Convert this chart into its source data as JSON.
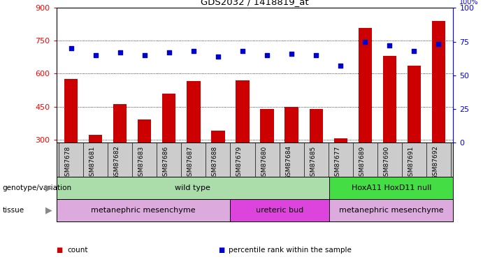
{
  "title": "GDS2032 / 1418819_at",
  "samples": [
    "GSM87678",
    "GSM87681",
    "GSM87682",
    "GSM87683",
    "GSM87686",
    "GSM87687",
    "GSM87688",
    "GSM87679",
    "GSM87680",
    "GSM87684",
    "GSM87685",
    "GSM87677",
    "GSM87689",
    "GSM87690",
    "GSM87691",
    "GSM87692"
  ],
  "counts": [
    575,
    320,
    460,
    390,
    510,
    565,
    340,
    570,
    440,
    450,
    440,
    305,
    810,
    680,
    635,
    840
  ],
  "percentiles": [
    70,
    65,
    67,
    65,
    67,
    68,
    64,
    68,
    65,
    66,
    65,
    57,
    75,
    72,
    68,
    73
  ],
  "ylim_left": [
    285,
    900
  ],
  "ylim_right": [
    0,
    100
  ],
  "yticks_left": [
    300,
    450,
    600,
    750,
    900
  ],
  "yticks_right": [
    0,
    25,
    50,
    75,
    100
  ],
  "bar_color": "#cc0000",
  "dot_color": "#0000cc",
  "label_bg_color": "#cccccc",
  "plot_bg": "#ffffff",
  "genotype_groups": [
    {
      "label": "wild type",
      "start": 0,
      "end": 11,
      "color": "#aaddaa"
    },
    {
      "label": "HoxA11 HoxD11 null",
      "start": 11,
      "end": 16,
      "color": "#44dd44"
    }
  ],
  "tissue_groups": [
    {
      "label": "metanephric mesenchyme",
      "start": 0,
      "end": 7,
      "color": "#ddaadd"
    },
    {
      "label": "ureteric bud",
      "start": 7,
      "end": 11,
      "color": "#dd44dd"
    },
    {
      "label": "metanephric mesenchyme",
      "start": 11,
      "end": 16,
      "color": "#ddaadd"
    }
  ],
  "legend_items": [
    {
      "color": "#cc0000",
      "label": "count"
    },
    {
      "color": "#0000cc",
      "label": "percentile rank within the sample"
    }
  ],
  "right_axis_top_label": "100%"
}
